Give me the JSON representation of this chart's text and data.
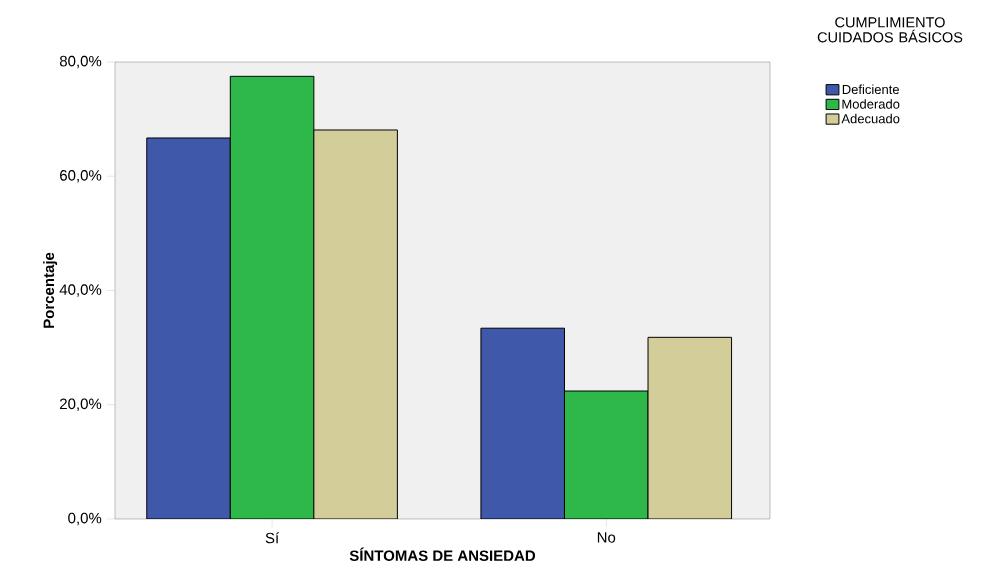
{
  "chart_data": {
    "type": "bar",
    "xlabel": "SÍNTOMAS DE ANSIEDAD",
    "ylabel": "Porcentaje",
    "legend_title": "CUMPLIMIENTO CUIDADOS BÁSICOS",
    "categories": [
      "Sí",
      "No"
    ],
    "series": [
      {
        "name": "Deficiente",
        "color": "#3f58aa",
        "values": [
          66.7,
          33.4
        ]
      },
      {
        "name": "Moderado",
        "color": "#2fb84a",
        "values": [
          77.5,
          22.4
        ]
      },
      {
        "name": "Adecuado",
        "color": "#d3ce99",
        "values": [
          68.1,
          31.8
        ]
      }
    ],
    "ylim": [
      0,
      80
    ],
    "yticks": [
      {
        "value": 0,
        "label": "0,0%"
      },
      {
        "value": 20,
        "label": "20,0%"
      },
      {
        "value": 40,
        "label": "40,0%"
      },
      {
        "value": 60,
        "label": "60,0%"
      },
      {
        "value": 80,
        "label": "80,0%"
      }
    ],
    "grid": false,
    "legend": "top right"
  }
}
